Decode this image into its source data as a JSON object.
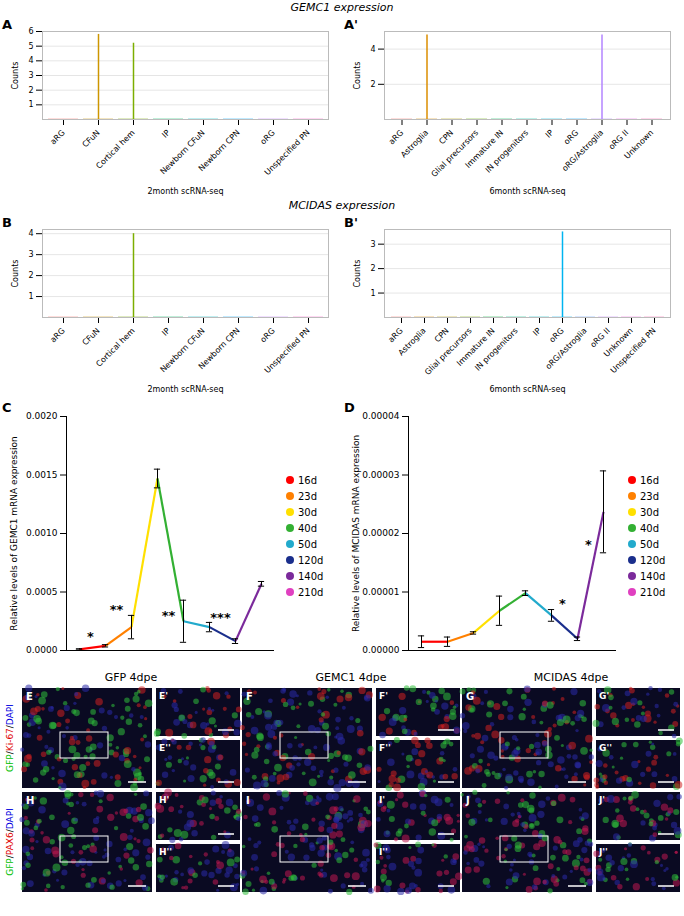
{
  "section_titles": [
    "GEMC1 expression",
    "MCIDAS expression"
  ],
  "chart_data": [
    {
      "type": "violin",
      "panel": "A",
      "ylabel": "Counts",
      "xlabel": "2month scRNA-seq",
      "categories": [
        "aRG",
        "CFuN",
        "Cortical hem",
        "IP",
        "Newborn CFuN",
        "Newborn CPN",
        "oRG",
        "Unspecified PN"
      ],
      "values": [
        0,
        5.8,
        5.2,
        0,
        0,
        0,
        0,
        0
      ],
      "colors": [
        "#F8766D",
        "#CD9600",
        "#7CAE00",
        "#00BE67",
        "#00BFC4",
        "#00A9FF",
        "#C77CFF",
        "#FF61CC"
      ],
      "ylim": [
        0,
        6
      ],
      "yticks": [
        1,
        2,
        3,
        4,
        5,
        6
      ],
      "grid": true
    },
    {
      "type": "violin",
      "panel": "A'",
      "ylabel": "Counts",
      "xlabel": "6month scRNA-seq",
      "categories": [
        "aRG",
        "Astroglia",
        "CPN",
        "Glial precursors",
        "Immature IN",
        "IN progenitors",
        "IP",
        "oRG",
        "oRG/Astroglia",
        "oRG II",
        "Unknown"
      ],
      "values": [
        0,
        4.8,
        0,
        0,
        0,
        0,
        0,
        0,
        4.8,
        0,
        0
      ],
      "colors": [
        "#F8766D",
        "#DB8E00",
        "#AEA200",
        "#64B200",
        "#00BD5C",
        "#00C1A7",
        "#00BADE",
        "#00A6FF",
        "#B385FF",
        "#EF67EB",
        "#FF63B6"
      ],
      "ylim": [
        0,
        5
      ],
      "yticks": [
        2,
        4
      ],
      "grid": true
    },
    {
      "type": "violin",
      "panel": "B",
      "ylabel": "Counts",
      "xlabel": "2month scRNA-seq",
      "categories": [
        "aRG",
        "CFuN",
        "Cortical hem",
        "IP",
        "Newborn CFuN",
        "Newborn CPN",
        "oRG",
        "Unspecified PN"
      ],
      "values": [
        0,
        0,
        4.0,
        0,
        0,
        0,
        0,
        0
      ],
      "colors": [
        "#F8766D",
        "#CD9600",
        "#7CAE00",
        "#00BE67",
        "#00BFC4",
        "#00A9FF",
        "#C77CFF",
        "#FF61CC"
      ],
      "ylim": [
        0,
        4.2
      ],
      "yticks": [
        1,
        2,
        3,
        4
      ],
      "grid": true
    },
    {
      "type": "violin",
      "panel": "B'",
      "ylabel": "Counts",
      "xlabel": "6month scRNA-seq",
      "categories": [
        "aRG",
        "Astroglia",
        "CPN",
        "Glial precursors",
        "Immature IN",
        "IN progenitors",
        "IP",
        "oRG",
        "oRG/Astroglia",
        "oRG II",
        "Unknown",
        "Unspecified PN"
      ],
      "values": [
        0,
        0,
        0,
        0,
        0,
        0,
        0,
        3.5,
        0,
        0,
        0,
        0
      ],
      "colors": [
        "#F8766D",
        "#DE8C00",
        "#B79F00",
        "#7CAE00",
        "#00BA38",
        "#00C08B",
        "#00BFC4",
        "#00B4F0",
        "#619CFF",
        "#C77CFF",
        "#F564E3",
        "#FF64B0"
      ],
      "ylim": [
        0,
        3.6
      ],
      "yticks": [
        1,
        2,
        3
      ],
      "grid": true
    },
    {
      "type": "line",
      "panel": "C",
      "ylabel": "Relative levels of GEMC1 mRNA expression",
      "categories": [
        "16d",
        "23d",
        "30d",
        "40d",
        "50d",
        "120d",
        "140d",
        "210d"
      ],
      "values": [
        1e-05,
        4e-05,
        0.0002,
        0.00147,
        0.00025,
        0.0002,
        8e-05,
        0.00057
      ],
      "errors": [
        5e-06,
        1e-05,
        0.0001,
        8e-05,
        0.00018,
        4e-05,
        2e-05,
        2e-05
      ],
      "colors": [
        "#FF0000",
        "#FF8000",
        "#FFE000",
        "#33B033",
        "#22AACC",
        "#1A2E8C",
        "#7B2A9B",
        "#E040C0"
      ],
      "ylim": [
        0,
        0.002
      ],
      "yticks": [
        {
          "value": 0,
          "label": "0.0000"
        },
        {
          "value": 0.0005,
          "label": "0.0005"
        },
        {
          "value": 0.001,
          "label": "0.0010"
        },
        {
          "value": 0.0015,
          "label": "0.0015"
        },
        {
          "value": 0.002,
          "label": "0.0020"
        }
      ],
      "annotations": [
        {
          "text": "*",
          "x": "23d",
          "y": 0.00012
        },
        {
          "text": "**",
          "x": "30d",
          "y": 0.00035
        },
        {
          "text": "**",
          "x": "50d",
          "y": 0.0003
        },
        {
          "text": "***",
          "x": "140d",
          "y": 0.00028
        }
      ],
      "tick_labels": "y",
      "legend": "right"
    },
    {
      "type": "line",
      "panel": "D",
      "ylabel": "Relative levels of MCIDAS mRNA expression",
      "categories": [
        "16d",
        "23d",
        "30d",
        "40d",
        "50d",
        "120d",
        "140d",
        "210d"
      ],
      "values": [
        1.5e-06,
        1.5e-06,
        3e-06,
        6.8e-06,
        9.8e-06,
        6e-06,
        2e-06,
        2.37e-05
      ],
      "errors": [
        1e-06,
        8e-07,
        2e-07,
        2.5e-06,
        4e-07,
        1e-06,
        3e-07,
        7e-06
      ],
      "colors": [
        "#FF0000",
        "#FF8000",
        "#FFE000",
        "#33B033",
        "#22AACC",
        "#1A2E8C",
        "#7B2A9B",
        "#E040C0"
      ],
      "ylim": [
        0,
        4e-05
      ],
      "yticks": [
        {
          "value": 0,
          "label": "0.00000"
        },
        {
          "value": 1e-05,
          "label": "0.00001"
        },
        {
          "value": 2e-05,
          "label": "0.00002"
        },
        {
          "value": 3e-05,
          "label": "0.00003"
        },
        {
          "value": 4e-05,
          "label": "0.00004"
        }
      ],
      "annotations": [
        {
          "text": "*",
          "x": "140d",
          "y": 8e-06
        },
        {
          "text": "*",
          "x": "210d",
          "y": 1.8e-05
        }
      ],
      "tick_labels": "y",
      "legend": "right"
    }
  ],
  "image_panels": {
    "columns": [
      "GFP 4dpe",
      "GEMC1 4dpe",
      "MCIDAS 4dpe"
    ],
    "rows": [
      {
        "label": [
          {
            "text": "GFP",
            "color": "#00C000"
          },
          {
            "text": "/",
            "color": "#000000"
          },
          {
            "text": "Ki-67",
            "color": "#E00000"
          },
          {
            "text": "/",
            "color": "#000000"
          },
          {
            "text": "DAPI",
            "color": "#0000E0"
          }
        ],
        "panels": [
          {
            "letter": "E",
            "insets": [
              "E'",
              "E''"
            ]
          },
          {
            "letter": "F",
            "insets": [
              "F'",
              "F''"
            ]
          },
          {
            "letter": "G",
            "insets": [
              "G'",
              "G''"
            ]
          }
        ]
      },
      {
        "label": [
          {
            "text": "GFP",
            "color": "#00C000"
          },
          {
            "text": "/",
            "color": "#000000"
          },
          {
            "text": "PAX6",
            "color": "#E00000"
          },
          {
            "text": "/",
            "color": "#000000"
          },
          {
            "text": "DAPI",
            "color": "#0000E0"
          }
        ],
        "panels": [
          {
            "letter": "H",
            "insets": [
              "H'",
              "H''"
            ]
          },
          {
            "letter": "I",
            "insets": [
              "I'",
              "I''"
            ]
          },
          {
            "letter": "J",
            "insets": [
              "J'",
              "J''"
            ]
          }
        ]
      }
    ]
  }
}
